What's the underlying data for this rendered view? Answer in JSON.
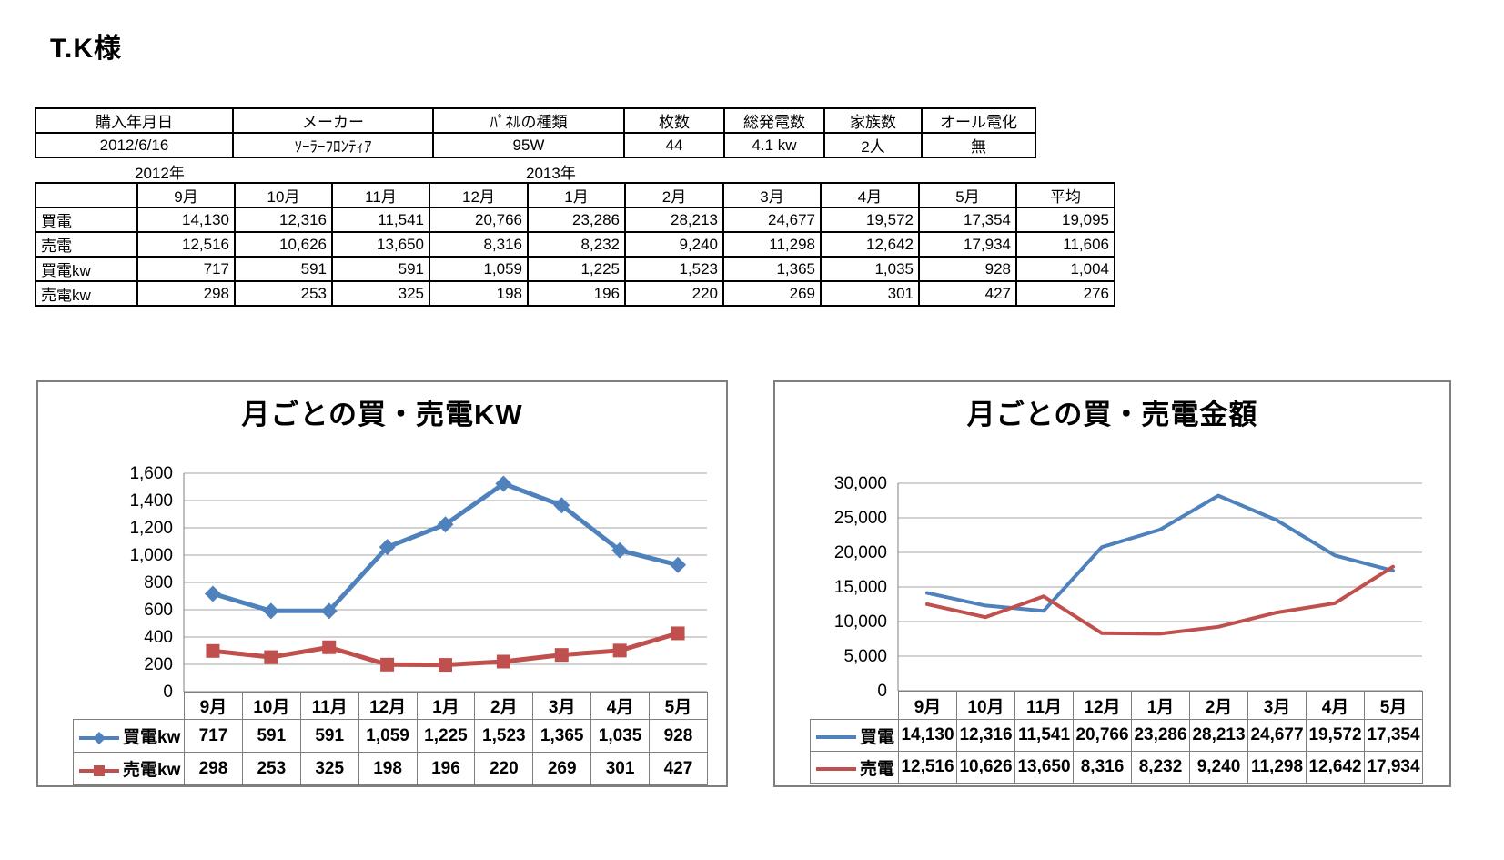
{
  "page": {
    "title": "T.K様"
  },
  "info_table": {
    "headers": [
      "購入年月日",
      "メーカー",
      "ﾊﾟﾈﾙの種類",
      "枚数",
      "総発電数",
      "家族数",
      "オール電化"
    ],
    "values": [
      "2012/6/16",
      "ｿｰﾗｰﾌﾛﾝﾃｨｱ",
      "95W",
      "44",
      "4.1 kw",
      "2人",
      "無"
    ]
  },
  "year_labels": {
    "left": "2012年",
    "right": "2013年"
  },
  "data_table": {
    "months": [
      "9月",
      "10月",
      "11月",
      "12月",
      "1月",
      "2月",
      "3月",
      "4月",
      "5月"
    ],
    "avg_label": "平均",
    "rows": [
      {
        "label": "買電",
        "values": [
          14130,
          12316,
          11541,
          20766,
          23286,
          28213,
          24677,
          19572,
          17354
        ],
        "avg": 19095
      },
      {
        "label": "売電",
        "values": [
          12516,
          10626,
          13650,
          8316,
          8232,
          9240,
          11298,
          12642,
          17934
        ],
        "avg": 11606
      },
      {
        "label": "買電kw",
        "values": [
          717,
          591,
          591,
          1059,
          1225,
          1523,
          1365,
          1035,
          928
        ],
        "avg": 1004
      },
      {
        "label": "売電kw",
        "values": [
          298,
          253,
          325,
          198,
          196,
          220,
          269,
          301,
          427
        ],
        "avg": 276
      }
    ]
  },
  "chart_data": [
    {
      "type": "line",
      "title": "月ごとの買・売電KW",
      "categories": [
        "9月",
        "10月",
        "11月",
        "12月",
        "1月",
        "2月",
        "3月",
        "4月",
        "5月"
      ],
      "series": [
        {
          "name": "買電kw",
          "values": [
            717,
            591,
            591,
            1059,
            1225,
            1523,
            1365,
            1035,
            928
          ],
          "color": "#4F81BD",
          "marker": "diamond"
        },
        {
          "name": "売電kw",
          "values": [
            298,
            253,
            325,
            198,
            196,
            220,
            269,
            301,
            427
          ],
          "color": "#C0504D",
          "marker": "square"
        }
      ],
      "xlabel": "",
      "ylabel": "",
      "ylim": [
        0,
        1600
      ],
      "ystep": 200,
      "grid": true,
      "gridcolor": "#A6A6A6",
      "legend_position": "table-left"
    },
    {
      "type": "line",
      "title": "月ごとの買・売電金額",
      "categories": [
        "9月",
        "10月",
        "11月",
        "12月",
        "1月",
        "2月",
        "3月",
        "4月",
        "5月"
      ],
      "series": [
        {
          "name": "買電",
          "values": [
            14130,
            12316,
            11541,
            20766,
            23286,
            28213,
            24677,
            19572,
            17354
          ],
          "color": "#4F81BD",
          "marker": "none"
        },
        {
          "name": "売電",
          "values": [
            12516,
            10626,
            13650,
            8316,
            8232,
            9240,
            11298,
            12642,
            17934
          ],
          "color": "#C0504D",
          "marker": "none"
        }
      ],
      "xlabel": "",
      "ylabel": "",
      "ylim": [
        0,
        30000
      ],
      "ystep": 5000,
      "grid": true,
      "gridcolor": "#A6A6A6",
      "legend_position": "table-left"
    }
  ]
}
